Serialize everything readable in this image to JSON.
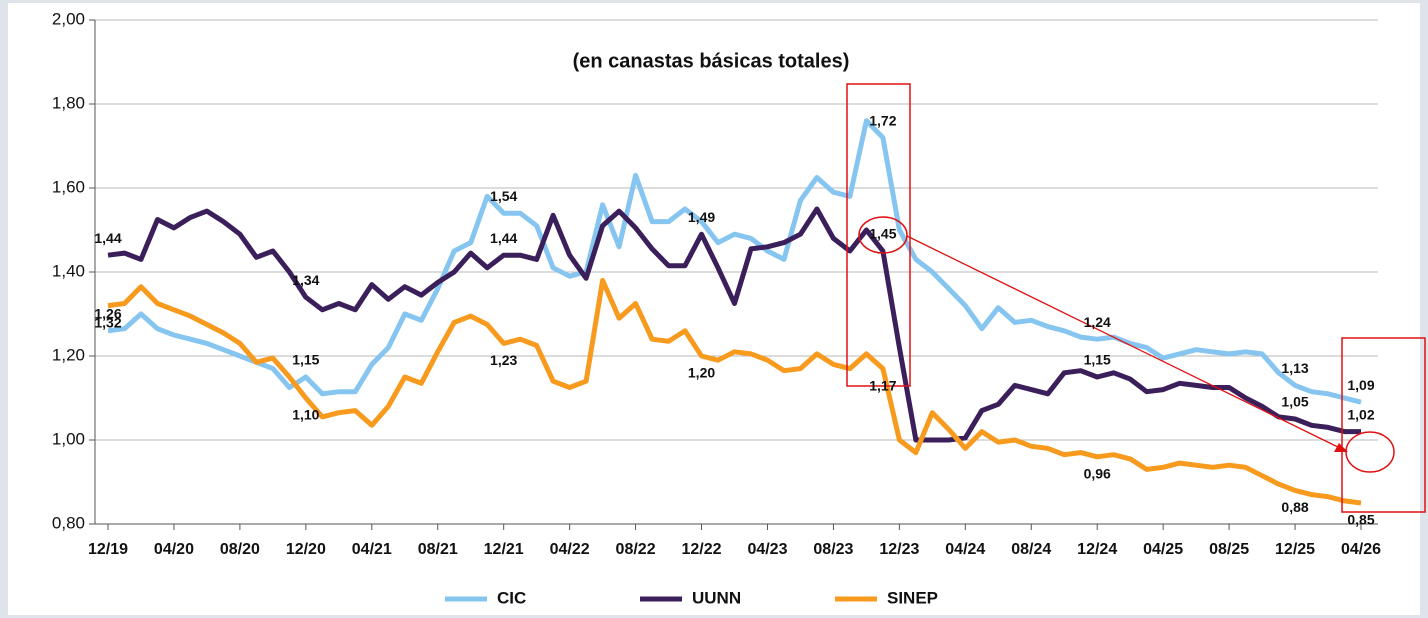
{
  "chart_data": {
    "type": "line",
    "subtitle": "(en canastas básicas totales)",
    "categories": [
      "12/19",
      null,
      null,
      null,
      "04/20",
      null,
      null,
      null,
      "08/20",
      null,
      null,
      null,
      "12/20",
      null,
      null,
      null,
      "04/21",
      null,
      null,
      null,
      "08/21",
      null,
      null,
      null,
      "12/21",
      null,
      null,
      null,
      "04/22",
      null,
      null,
      null,
      "08/22",
      null,
      null,
      null,
      "12/22",
      null,
      null,
      null,
      "04/23",
      null,
      null,
      null,
      "08/23",
      null,
      null,
      null,
      "12/23",
      null,
      null,
      null,
      "04/24",
      null,
      null,
      null,
      "08/24",
      null,
      null,
      null,
      "12/24",
      null,
      null,
      null,
      "04/25",
      null,
      null,
      null,
      "08/25",
      null,
      null,
      null,
      "12/25",
      null,
      null,
      null,
      "04/26"
    ],
    "ylim": [
      0.8,
      2.0
    ],
    "yticks": [
      {
        "value": 0.8,
        "label": "0,80"
      },
      {
        "value": 1.0,
        "label": "1,00"
      },
      {
        "value": 1.2,
        "label": "1,20"
      },
      {
        "value": 1.4,
        "label": "1,40"
      },
      {
        "value": 1.6,
        "label": "1,60"
      },
      {
        "value": 1.8,
        "label": "1,80"
      },
      {
        "value": 2.0,
        "label": "2,00"
      }
    ],
    "grid": true,
    "legend": "bottom",
    "series": [
      {
        "name": "CIC",
        "color": "#86c5ef",
        "values": [
          1.26,
          1.265,
          1.3,
          1.265,
          1.25,
          1.24,
          1.23,
          1.215,
          1.2,
          1.185,
          1.17,
          1.125,
          1.15,
          1.11,
          1.115,
          1.115,
          1.18,
          1.22,
          1.3,
          1.285,
          1.36,
          1.45,
          1.47,
          1.58,
          1.54,
          1.54,
          1.51,
          1.41,
          1.39,
          1.4,
          1.56,
          1.46,
          1.63,
          1.52,
          1.52,
          1.55,
          1.52,
          1.47,
          1.49,
          1.48,
          1.45,
          1.43,
          1.57,
          1.625,
          1.59,
          1.58,
          1.76,
          1.72,
          1.5,
          1.43,
          1.4,
          1.36,
          1.32,
          1.265,
          1.315,
          1.28,
          1.285,
          1.27,
          1.26,
          1.245,
          1.24,
          1.245,
          1.23,
          1.22,
          1.195,
          1.205,
          1.215,
          1.21,
          1.205,
          1.21,
          1.205,
          1.16,
          1.13,
          1.115,
          1.11,
          1.1,
          1.09
        ],
        "value_labels": [
          "1,26",
          null,
          null,
          null,
          null,
          null,
          null,
          null,
          null,
          null,
          null,
          null,
          "1,15",
          null,
          null,
          null,
          null,
          null,
          null,
          null,
          null,
          null,
          null,
          null,
          "1,54",
          null,
          null,
          null,
          null,
          null,
          null,
          null,
          null,
          null,
          null,
          null,
          null,
          null,
          null,
          null,
          null,
          null,
          null,
          null,
          null,
          null,
          null,
          "1,72",
          null,
          null,
          null,
          null,
          null,
          null,
          null,
          null,
          null,
          null,
          null,
          null,
          "1,24",
          null,
          null,
          null,
          null,
          null,
          null,
          null,
          null,
          null,
          null,
          null,
          "1,13",
          null,
          null,
          null,
          "1,09"
        ]
      },
      {
        "name": "UUNN",
        "color": "#3b1f5a",
        "values": [
          1.44,
          1.445,
          1.43,
          1.525,
          1.505,
          1.53,
          1.545,
          1.52,
          1.49,
          1.435,
          1.45,
          1.4,
          1.34,
          1.31,
          1.325,
          1.31,
          1.37,
          1.335,
          1.365,
          1.345,
          1.375,
          1.4,
          1.445,
          1.41,
          1.44,
          1.44,
          1.43,
          1.535,
          1.44,
          1.385,
          1.51,
          1.545,
          1.505,
          1.455,
          1.415,
          1.415,
          1.49,
          1.41,
          1.325,
          1.455,
          1.46,
          1.47,
          1.49,
          1.55,
          1.48,
          1.45,
          1.5,
          1.45,
          1.22,
          1.0,
          1.0,
          1.0,
          1.005,
          1.07,
          1.085,
          1.13,
          1.12,
          1.11,
          1.16,
          1.165,
          1.15,
          1.16,
          1.145,
          1.115,
          1.12,
          1.135,
          1.13,
          1.125,
          1.125,
          1.1,
          1.08,
          1.055,
          1.05,
          1.035,
          1.03,
          1.02,
          1.02
        ],
        "value_labels": [
          "1,44",
          null,
          null,
          null,
          null,
          null,
          null,
          null,
          null,
          null,
          null,
          null,
          "1,34",
          null,
          null,
          null,
          null,
          null,
          null,
          null,
          null,
          null,
          null,
          null,
          "1,44",
          null,
          null,
          null,
          null,
          null,
          null,
          null,
          null,
          null,
          null,
          null,
          "1,49",
          null,
          null,
          null,
          null,
          null,
          null,
          null,
          null,
          null,
          null,
          "1,45",
          null,
          null,
          null,
          null,
          null,
          null,
          null,
          null,
          null,
          null,
          null,
          null,
          "1,15",
          null,
          null,
          null,
          null,
          null,
          null,
          null,
          null,
          null,
          null,
          null,
          "1,05",
          null,
          null,
          null,
          "1,02"
        ]
      },
      {
        "name": "SINEP",
        "color": "#f79a1e",
        "values": [
          1.32,
          1.325,
          1.365,
          1.325,
          1.31,
          1.295,
          1.275,
          1.255,
          1.23,
          1.185,
          1.195,
          1.15,
          1.1,
          1.055,
          1.065,
          1.07,
          1.035,
          1.08,
          1.15,
          1.135,
          1.21,
          1.28,
          1.295,
          1.275,
          1.23,
          1.24,
          1.225,
          1.14,
          1.125,
          1.14,
          1.38,
          1.29,
          1.325,
          1.24,
          1.235,
          1.26,
          1.2,
          1.19,
          1.21,
          1.205,
          1.19,
          1.165,
          1.17,
          1.205,
          1.18,
          1.17,
          1.205,
          1.17,
          1.0,
          0.97,
          1.065,
          1.025,
          0.98,
          1.02,
          0.995,
          1.0,
          0.985,
          0.98,
          0.965,
          0.97,
          0.96,
          0.965,
          0.955,
          0.93,
          0.935,
          0.945,
          0.94,
          0.935,
          0.94,
          0.935,
          0.915,
          0.895,
          0.88,
          0.87,
          0.865,
          0.855,
          0.85
        ],
        "value_labels": [
          "1,32",
          null,
          null,
          null,
          null,
          null,
          null,
          null,
          null,
          null,
          null,
          null,
          "1,10",
          null,
          null,
          null,
          null,
          null,
          null,
          null,
          null,
          null,
          null,
          null,
          "1,23",
          null,
          null,
          null,
          null,
          null,
          null,
          null,
          null,
          null,
          null,
          null,
          "1,20",
          null,
          null,
          null,
          null,
          null,
          null,
          null,
          null,
          null,
          null,
          "1,17",
          null,
          null,
          null,
          null,
          null,
          null,
          null,
          null,
          null,
          null,
          null,
          null,
          "0,96",
          null,
          null,
          null,
          null,
          null,
          null,
          null,
          null,
          null,
          null,
          null,
          "0,88",
          null,
          null,
          null,
          "0,85"
        ]
      }
    ]
  }
}
